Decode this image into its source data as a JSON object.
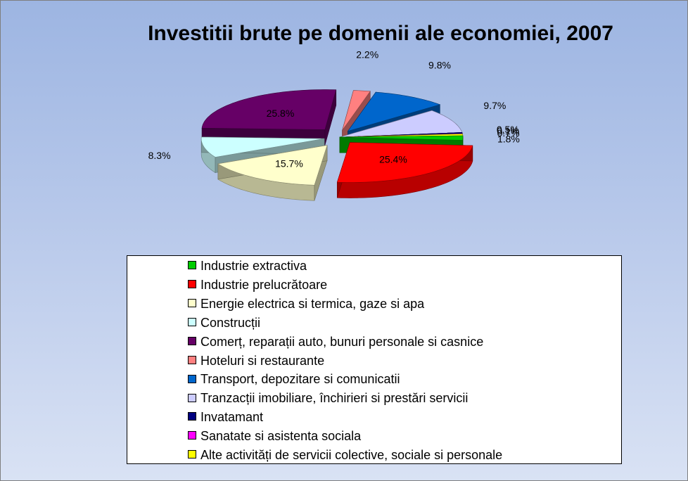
{
  "chart_data": {
    "type": "pie",
    "title": "Investitii brute pe domenii ale economiei, 2007",
    "legend_position": "bottom",
    "categories": [
      "Industrie extractiva",
      "Industrie prelucrătoare",
      "Energie electrica si termica, gaze si apa",
      "Construcții",
      "Comerț, reparații auto, bunuri personale si casnice",
      "Hoteluri si restaurante",
      "Transport, depozitare si comunicatii",
      "Tranzacții imobiliare, închirieri si prestări servicii",
      "Invatamant",
      "Sanatate si asistenta sociala",
      "Alte activități de servicii colective, sociale si personale"
    ],
    "values": [
      1.8,
      25.4,
      15.7,
      8.3,
      25.8,
      2.2,
      9.8,
      9.7,
      0.5,
      0.1,
      0.7
    ],
    "labels": [
      "1.8%",
      "25.4%",
      "15.7%",
      "8.3%",
      "25.8%",
      "2.2%",
      "9.8%",
      "9.7%",
      "0.5%",
      "0.1%",
      "0.7%"
    ],
    "colors": [
      "#00cc00",
      "#ff0000",
      "#ffffcc",
      "#ccffff",
      "#660066",
      "#ff8080",
      "#0066cc",
      "#ccccff",
      "#000080",
      "#ff00ff",
      "#ffff00"
    ]
  }
}
